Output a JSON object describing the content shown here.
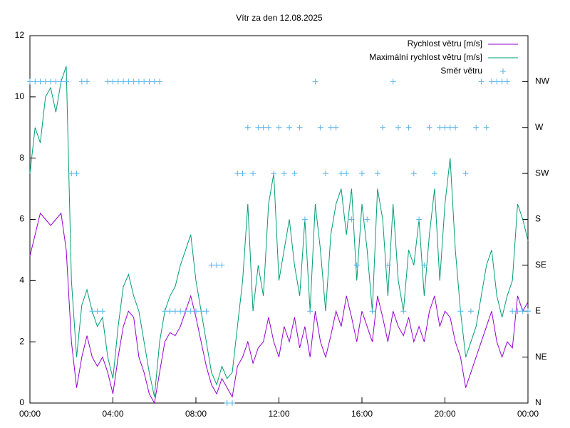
{
  "chart_data": {
    "type": "line",
    "title": "Vítr za den 12.08.2025",
    "x": [
      0,
      0.25,
      0.5,
      0.75,
      1,
      1.25,
      1.5,
      1.75,
      2,
      2.25,
      2.5,
      2.75,
      3,
      3.25,
      3.5,
      3.75,
      4,
      4.25,
      4.5,
      4.75,
      5,
      5.25,
      5.5,
      5.75,
      6,
      6.25,
      6.5,
      6.75,
      7,
      7.25,
      7.5,
      7.75,
      8,
      8.25,
      8.5,
      8.75,
      9,
      9.25,
      9.5,
      9.75,
      10,
      10.25,
      10.5,
      10.75,
      11,
      11.25,
      11.5,
      11.75,
      12,
      12.25,
      12.5,
      12.75,
      13,
      13.25,
      13.5,
      13.75,
      14,
      14.25,
      14.5,
      14.75,
      15,
      15.25,
      15.5,
      15.75,
      16,
      16.25,
      16.5,
      16.75,
      17,
      17.25,
      17.5,
      17.75,
      18,
      18.25,
      18.5,
      18.75,
      19,
      19.25,
      19.5,
      19.75,
      20,
      20.25,
      20.5,
      20.75,
      21,
      21.25,
      21.5,
      21.75,
      22,
      22.25,
      22.5,
      22.75,
      23,
      23.25,
      23.5,
      23.75,
      24
    ],
    "series": [
      {
        "name": "Rychlost větru [m/s]",
        "color": "#9400d3",
        "values": [
          4.8,
          5.5,
          6.2,
          6,
          5.8,
          6,
          6.2,
          5,
          2,
          0.5,
          1.5,
          2.2,
          1.5,
          1.2,
          1.5,
          1,
          0.3,
          1.5,
          2.5,
          3,
          2.8,
          1.5,
          1,
          0.3,
          0,
          1,
          2,
          2.3,
          2.2,
          2.5,
          3,
          3.5,
          2.8,
          2,
          1.2,
          0.6,
          0.3,
          0.8,
          0.5,
          0.2,
          1.2,
          1.5,
          2,
          1.3,
          1.8,
          2,
          2.8,
          2,
          1.5,
          2.5,
          2,
          2.8,
          1.8,
          2.5,
          1.5,
          3,
          2,
          1.5,
          2.2,
          3,
          2.5,
          3.5,
          2.8,
          2,
          3,
          2.5,
          2,
          3.5,
          2.8,
          2,
          3,
          2.5,
          2.2,
          2.8,
          2,
          2.5,
          2,
          3,
          3.5,
          2.5,
          3,
          2.8,
          2,
          1.5,
          0.5,
          1,
          1.5,
          2,
          2.5,
          3,
          2,
          1.5,
          2,
          1.8,
          3.5,
          3,
          3.3
        ]
      },
      {
        "name": "Maximální rychlost větru [m/s]",
        "color": "#009e73",
        "values": [
          7.5,
          9,
          8.5,
          10,
          10.3,
          9.5,
          10.5,
          11,
          4,
          1.5,
          3.2,
          3.7,
          3,
          2.5,
          2.8,
          1.5,
          0.8,
          2.5,
          3.8,
          4.2,
          3.5,
          3,
          2,
          1,
          0.2,
          2,
          3,
          3.5,
          3.8,
          4.5,
          5,
          5.5,
          4,
          3,
          2,
          1,
          0.6,
          1.2,
          0.8,
          1,
          2.5,
          4,
          6.5,
          3,
          4.5,
          3.5,
          6.5,
          7.5,
          4,
          5,
          6,
          4.5,
          3.5,
          6,
          3,
          6.5,
          5,
          3,
          5.5,
          6.5,
          7,
          5.5,
          7,
          4,
          6.5,
          5,
          3,
          7,
          6,
          3.5,
          6.5,
          4,
          3,
          5,
          4.5,
          6,
          3.5,
          5.5,
          7,
          4,
          6.5,
          8,
          5,
          3,
          1.5,
          2,
          2.5,
          3.5,
          4.5,
          5,
          3.5,
          2.8,
          3.5,
          4,
          6.5,
          6,
          5.3
        ]
      },
      {
        "name": "Směr větru",
        "color": "#56b4e9",
        "type": "scatter",
        "axis": "y2",
        "values": [
          10.5,
          10.5,
          10.5,
          10.5,
          10.5,
          10.5,
          10.5,
          10.5,
          7.5,
          7.5,
          10.5,
          10.5,
          3,
          3,
          3,
          10.5,
          10.5,
          10.5,
          10.5,
          10.5,
          10.5,
          10.5,
          10.5,
          10.5,
          10.5,
          10.5,
          3,
          3,
          3,
          3,
          3,
          3,
          3,
          3,
          3,
          4.5,
          4.5,
          4.5,
          0,
          0,
          7.5,
          7.5,
          9,
          7.5,
          9,
          9,
          9,
          7.5,
          9,
          7.5,
          9,
          7.5,
          9,
          6,
          3,
          10.5,
          9,
          7.5,
          9,
          9,
          7.5,
          7.5,
          6,
          4.5,
          7.5,
          6,
          3,
          7.5,
          9,
          4.5,
          10.5,
          9,
          3,
          9,
          7.5,
          6,
          4.5,
          9,
          7.5,
          9,
          9,
          9,
          9,
          3,
          7.5,
          3,
          9,
          10.5,
          9,
          10.5,
          10.5,
          10.5,
          10.5,
          3,
          3,
          3,
          3
        ]
      }
    ],
    "xlim": [
      0,
      24
    ],
    "xticks": [
      {
        "value": 0,
        "label": "00:00"
      },
      {
        "value": 4,
        "label": "04:00"
      },
      {
        "value": 8,
        "label": "08:00"
      },
      {
        "value": 12,
        "label": "12:00"
      },
      {
        "value": 16,
        "label": "16:00"
      },
      {
        "value": 20,
        "label": "20:00"
      },
      {
        "value": 24,
        "label": "00:00"
      }
    ],
    "ylim": [
      0,
      12
    ],
    "yticks": [
      0,
      2,
      4,
      6,
      8,
      10,
      12
    ],
    "y2lim": [
      0,
      12
    ],
    "y2ticks": [
      {
        "value": 0,
        "label": "N"
      },
      {
        "value": 1.5,
        "label": "NE"
      },
      {
        "value": 3,
        "label": "E"
      },
      {
        "value": 4.5,
        "label": "SE"
      },
      {
        "value": 6,
        "label": "S"
      },
      {
        "value": 7.5,
        "label": "SW"
      },
      {
        "value": 9,
        "label": "W"
      },
      {
        "value": 10.5,
        "label": "NW"
      }
    ],
    "legend": "top-right"
  }
}
